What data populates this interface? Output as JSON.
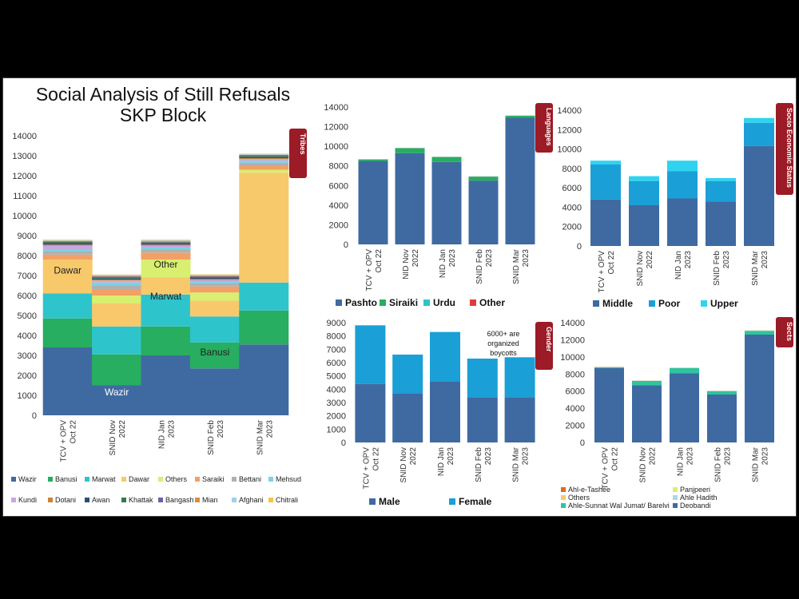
{
  "title_lines": [
    "Social Analysis of Still Refusals",
    "SKP Block"
  ],
  "chart_data": [
    {
      "id": "tribes",
      "type": "bar",
      "stacked": true,
      "tab_label": "Tribes",
      "categories": [
        "TCV + OPV Oct 22",
        "SNID Nov 2022",
        "NID Jan 2023",
        "SNID Feb 2023",
        "SNID Mar 2023"
      ],
      "ylim": [
        0,
        14000
      ],
      "yticks": [
        0,
        1000,
        2000,
        3000,
        4000,
        5000,
        6000,
        7000,
        8000,
        9000,
        10000,
        11000,
        12000,
        13000,
        14000
      ],
      "series": [
        {
          "name": "Wazir",
          "color": "#3f6aa1",
          "values": [
            3400,
            1500,
            3000,
            2350,
            3550
          ]
        },
        {
          "name": "Banusi",
          "color": "#27ae60",
          "values": [
            1450,
            1550,
            1450,
            1300,
            1700
          ]
        },
        {
          "name": "Marwat",
          "color": "#2ec4cc",
          "values": [
            1250,
            1400,
            1600,
            1300,
            1400
          ]
        },
        {
          "name": "Dawar",
          "color": "#f7c96b",
          "values": [
            1700,
            1150,
            850,
            800,
            5500
          ]
        },
        {
          "name": "Others",
          "color": "#d8ef70",
          "values": [
            0,
            400,
            900,
            400,
            150
          ]
        },
        {
          "name": "Saraiki",
          "color": "#f2a065",
          "values": [
            250,
            300,
            350,
            300,
            200
          ]
        },
        {
          "name": "Bettani",
          "color": "#b0b0b0",
          "values": [
            150,
            200,
            150,
            150,
            150
          ]
        },
        {
          "name": "Mehsud",
          "color": "#7ad3e3",
          "values": [
            100,
            150,
            100,
            100,
            100
          ]
        },
        {
          "name": "Kundi",
          "color": "#c9a8e0",
          "values": [
            200,
            100,
            100,
            80,
            80
          ]
        },
        {
          "name": "Dotani",
          "color": "#c8843a",
          "values": [
            50,
            50,
            50,
            50,
            50
          ]
        },
        {
          "name": "Awan",
          "color": "#2b4d7a",
          "values": [
            50,
            50,
            50,
            50,
            50
          ]
        },
        {
          "name": "Khattak",
          "color": "#2e7d46",
          "values": [
            60,
            50,
            50,
            50,
            50
          ]
        },
        {
          "name": "Bangash",
          "color": "#6f5fa8",
          "values": [
            40,
            50,
            40,
            40,
            40
          ]
        },
        {
          "name": "Mian",
          "color": "#e08a3c",
          "values": [
            30,
            40,
            40,
            30,
            30
          ]
        },
        {
          "name": "Afghani",
          "color": "#9fd0e8",
          "values": [
            40,
            40,
            40,
            30,
            30
          ]
        },
        {
          "name": "Chitrali",
          "color": "#f4c542",
          "values": [
            30,
            20,
            30,
            30,
            20
          ]
        }
      ],
      "labels": [
        {
          "text": "Wazir",
          "cat": 1,
          "y": 1000
        },
        {
          "text": "Banusi",
          "cat": 3,
          "y": 3000
        },
        {
          "text": "Marwat",
          "cat": 2,
          "y": 5800
        },
        {
          "text": "Other",
          "cat": 2,
          "y": 7400
        },
        {
          "text": "Dawar",
          "cat": 0,
          "y": 7100
        }
      ]
    },
    {
      "id": "languages",
      "type": "bar",
      "stacked": true,
      "tab_label": "Languages",
      "categories": [
        "TCV + OPV Oct 22",
        "NID Nov 2022",
        "NID Jan 2023",
        "SNID Feb 2023",
        "SNID Mar 2023"
      ],
      "ylim": [
        0,
        14000
      ],
      "yticks": [
        0,
        2000,
        4000,
        6000,
        8000,
        10000,
        12000,
        14000
      ],
      "series": [
        {
          "name": "Pashto",
          "color": "#3f6aa1",
          "values": [
            8500,
            9300,
            8400,
            6500,
            12900
          ]
        },
        {
          "name": "Siraiki",
          "color": "#27ae60",
          "values": [
            150,
            500,
            500,
            400,
            200
          ]
        },
        {
          "name": "Urdu",
          "color": "#2ec4cc",
          "values": [
            20,
            20,
            20,
            20,
            20
          ]
        },
        {
          "name": "Other",
          "color": "#e03b3b",
          "values": [
            10,
            10,
            10,
            10,
            10
          ]
        }
      ]
    },
    {
      "id": "socio",
      "type": "bar",
      "stacked": true,
      "tab_label": "Socio Economic Status",
      "categories": [
        "TCV + OPV Oct 22",
        "SNID Nov 2022",
        "NID Jan 2023",
        "SNID Feb 2023",
        "SNID Mar 2023"
      ],
      "ylim": [
        0,
        14000
      ],
      "yticks": [
        0,
        2000,
        4000,
        6000,
        8000,
        10000,
        12000,
        14000
      ],
      "series": [
        {
          "name": "Middle",
          "color": "#3f6aa1",
          "values": [
            4800,
            4200,
            4900,
            4600,
            10300
          ]
        },
        {
          "name": "Poor",
          "color": "#1a9fd6",
          "values": [
            3600,
            2500,
            2800,
            2100,
            2400
          ]
        },
        {
          "name": "Upper",
          "color": "#2fd3f0",
          "values": [
            400,
            500,
            1100,
            300,
            500
          ]
        }
      ]
    },
    {
      "id": "gender",
      "type": "bar",
      "stacked": true,
      "tab_label": "Gender",
      "categories": [
        "TCV + OPV Oct 22",
        "SNID Nov 2022",
        "NID Jan 2023",
        "SNID Feb 2023",
        "SNID Mar 2023"
      ],
      "ylim": [
        0,
        9000
      ],
      "yticks": [
        0,
        1000,
        2000,
        3000,
        4000,
        5000,
        6000,
        7000,
        8000,
        9000
      ],
      "series": [
        {
          "name": "Male",
          "color": "#3f6aa1",
          "values": [
            4400,
            3700,
            4600,
            3400,
            3400
          ]
        },
        {
          "name": "Female",
          "color": "#1a9fd6",
          "values": [
            4400,
            2900,
            3700,
            2900,
            3000
          ]
        }
      ],
      "annotation": [
        "6000+ are",
        "organized",
        "boycotts"
      ]
    },
    {
      "id": "sects",
      "type": "bar",
      "stacked": true,
      "tab_label": "Sects",
      "categories": [
        "TCV + OPV Oct 22",
        "SNID Nov 2022",
        "NID Jan 2023",
        "SNID Feb 2023",
        "SNID Mar 2023"
      ],
      "ylim": [
        0,
        14000
      ],
      "yticks": [
        0,
        2000,
        4000,
        6000,
        8000,
        10000,
        12000,
        14000
      ],
      "series": [
        {
          "name": "Deobandi",
          "color": "#3f6aa1",
          "values": [
            8700,
            6700,
            8100,
            5600,
            12600
          ]
        },
        {
          "name": "Ahle-Sunnat Wal Jumat/ Barelvi",
          "color": "#2ec4a0",
          "values": [
            100,
            500,
            600,
            400,
            450
          ]
        },
        {
          "name": "Ahle Hadith",
          "color": "#a8d8ea",
          "values": [
            10,
            10,
            10,
            10,
            10
          ]
        },
        {
          "name": "Others",
          "color": "#f7c96b",
          "values": [
            10,
            10,
            10,
            10,
            10
          ]
        },
        {
          "name": "Panjpeeri",
          "color": "#d8ef70",
          "values": [
            10,
            10,
            10,
            10,
            10
          ]
        },
        {
          "name": "Ahl-e-Tashee",
          "color": "#e06a20",
          "values": [
            10,
            10,
            10,
            10,
            10
          ]
        }
      ]
    }
  ]
}
